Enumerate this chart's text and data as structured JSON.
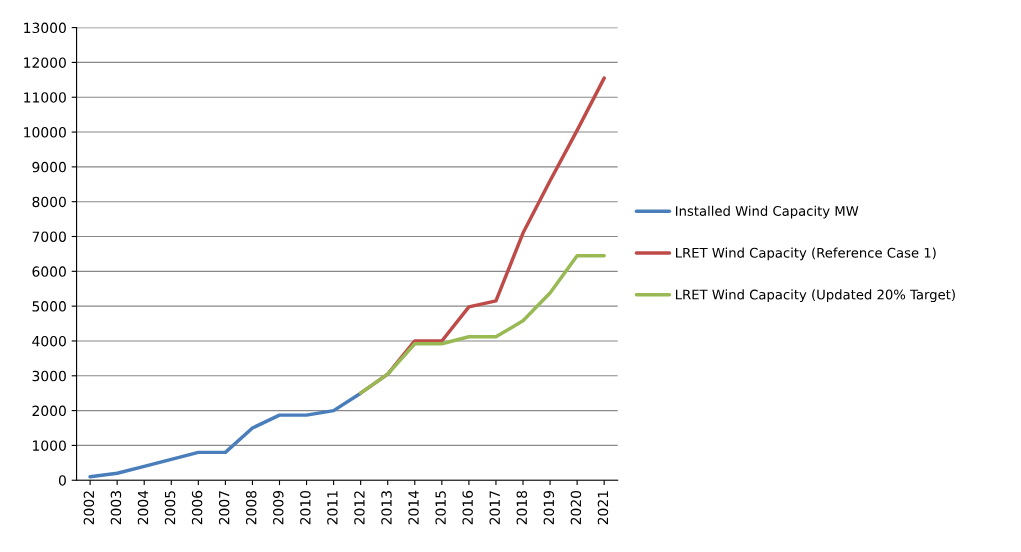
{
  "chart_data": {
    "type": "line",
    "categories": [
      "2002",
      "2003",
      "2004",
      "2005",
      "2006",
      "2007",
      "2008",
      "2009",
      "2010",
      "2011",
      "2012",
      "2013",
      "2014",
      "2015",
      "2016",
      "2017",
      "2018",
      "2019",
      "2020",
      "2021"
    ],
    "series": [
      {
        "name": "Installed Wind Capacity MW",
        "color": "#4a7ebb",
        "values": [
          100,
          200,
          400,
          600,
          800,
          800,
          1500,
          1870,
          1870,
          2000,
          2500,
          null,
          null,
          null,
          null,
          null,
          null,
          null,
          null,
          null
        ]
      },
      {
        "name": "LRET Wind Capacity (Reference Case 1)",
        "color": "#be4b48",
        "values": [
          null,
          null,
          null,
          null,
          null,
          null,
          null,
          null,
          null,
          null,
          2500,
          3050,
          4000,
          4000,
          4980,
          5150,
          7100,
          8600,
          10050,
          11550
        ]
      },
      {
        "name": "LRET Wind Capacity (Updated 20% Target)",
        "color": "#98b954",
        "values": [
          null,
          null,
          null,
          null,
          null,
          null,
          null,
          null,
          null,
          null,
          2500,
          3050,
          3920,
          3920,
          4120,
          4120,
          4580,
          5380,
          6450,
          6450
        ]
      }
    ],
    "ylim": [
      0,
      13000
    ],
    "yticks": [
      0,
      1000,
      2000,
      3000,
      4000,
      5000,
      6000,
      7000,
      8000,
      9000,
      10000,
      11000,
      12000,
      13000
    ],
    "grid": "y",
    "legend": "right",
    "marker": "none",
    "line_style": "solid"
  }
}
